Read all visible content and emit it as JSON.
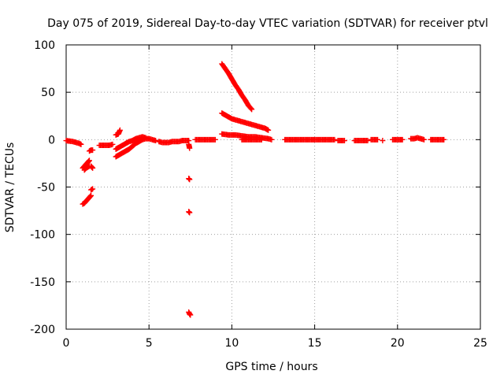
{
  "chart_data": {
    "type": "scatter",
    "title": "Day 075 of 2019, Sidereal Day-to-day VTEC variation (SDTVAR) for receiver ptvl",
    "xlabel": "GPS time / hours",
    "ylabel": "SDTVAR / TECUs",
    "xlim": [
      0,
      25
    ],
    "ylim": [
      -200,
      100
    ],
    "xticks": [
      0,
      5,
      10,
      15,
      20,
      25
    ],
    "yticks": [
      -200,
      -150,
      -100,
      -50,
      0,
      50,
      100
    ],
    "grid": true,
    "marker": "+",
    "series": [
      {
        "name": "SDTVAR",
        "color": "#ff0000",
        "segments": [
          [
            [
              0.0,
              -1
            ],
            [
              0.2,
              -1.5
            ],
            [
              0.4,
              -2
            ],
            [
              0.6,
              -3
            ],
            [
              0.8,
              -4
            ],
            [
              0.9,
              -5
            ]
          ],
          [
            [
              1.0,
              -30
            ],
            [
              1.1,
              -28
            ],
            [
              1.2,
              -26
            ],
            [
              1.3,
              -24
            ],
            [
              1.4,
              -22
            ]
          ],
          [
            [
              1.0,
              -68
            ],
            [
              1.1,
              -67
            ],
            [
              1.2,
              -65
            ],
            [
              1.3,
              -63
            ],
            [
              1.4,
              -61
            ],
            [
              1.5,
              -59
            ]
          ],
          [
            [
              1.1,
              -32
            ],
            [
              1.2,
              -30
            ],
            [
              1.3,
              -29
            ],
            [
              1.4,
              -28
            ]
          ],
          [
            [
              1.4,
              -12
            ],
            [
              1.5,
              -11
            ],
            [
              1.6,
              -11
            ]
          ],
          [
            [
              1.5,
              -28
            ],
            [
              1.6,
              -30
            ]
          ],
          [
            [
              1.5,
              -53
            ],
            [
              1.6,
              -52
            ]
          ],
          [
            [
              2.0,
              -6
            ],
            [
              2.2,
              -6
            ],
            [
              2.4,
              -6
            ],
            [
              2.6,
              -6
            ],
            [
              2.8,
              -5
            ]
          ],
          [
            [
              3.0,
              5
            ],
            [
              3.15,
              6
            ],
            [
              3.25,
              10
            ]
          ],
          [
            [
              3.0,
              -18
            ],
            [
              3.2,
              -16
            ],
            [
              3.4,
              -14
            ],
            [
              3.6,
              -12
            ],
            [
              3.8,
              -10
            ],
            [
              4.0,
              -7
            ],
            [
              4.2,
              -4
            ],
            [
              4.4,
              -2
            ],
            [
              4.6,
              0
            ],
            [
              4.8,
              1
            ],
            [
              5.0,
              1
            ],
            [
              5.2,
              0
            ],
            [
              5.4,
              -1
            ]
          ],
          [
            [
              3.0,
              -10
            ],
            [
              3.2,
              -8
            ],
            [
              3.4,
              -6
            ],
            [
              3.6,
              -4
            ],
            [
              3.8,
              -2
            ],
            [
              4.0,
              -1
            ],
            [
              4.2,
              1
            ],
            [
              4.4,
              2
            ],
            [
              4.6,
              3
            ],
            [
              4.8,
              2
            ]
          ],
          [
            [
              5.6,
              -2
            ],
            [
              5.8,
              -3
            ],
            [
              6.0,
              -3
            ],
            [
              6.2,
              -3
            ],
            [
              6.4,
              -2
            ],
            [
              6.6,
              -2
            ],
            [
              6.8,
              -2
            ],
            [
              7.0,
              -1
            ],
            [
              7.2,
              -1
            ],
            [
              7.4,
              -1
            ]
          ],
          [
            [
              7.4,
              -5
            ],
            [
              7.45,
              -9
            ]
          ],
          [
            [
              7.4,
              -41
            ],
            [
              7.45,
              -42
            ]
          ],
          [
            [
              7.4,
              -76
            ],
            [
              7.45,
              -77
            ]
          ],
          [
            [
              7.4,
              -182
            ],
            [
              7.45,
              -184
            ],
            [
              7.5,
              -185
            ]
          ],
          [
            [
              7.8,
              0
            ],
            [
              8.0,
              0
            ],
            [
              8.2,
              0
            ],
            [
              8.4,
              0
            ],
            [
              8.6,
              0
            ],
            [
              8.8,
              0
            ],
            [
              9.0,
              0
            ]
          ],
          [
            [
              9.4,
              80
            ],
            [
              9.6,
              75
            ],
            [
              9.8,
              70
            ],
            [
              10.0,
              64
            ],
            [
              10.2,
              58
            ],
            [
              10.4,
              53
            ],
            [
              10.6,
              47
            ],
            [
              10.8,
              42
            ],
            [
              11.0,
              36
            ],
            [
              11.2,
              32
            ]
          ],
          [
            [
              9.4,
              28
            ],
            [
              9.6,
              26
            ],
            [
              9.8,
              24
            ],
            [
              10.0,
              22
            ],
            [
              10.4,
              20
            ],
            [
              10.8,
              18
            ],
            [
              11.2,
              16
            ],
            [
              11.6,
              14
            ],
            [
              12.0,
              12
            ],
            [
              12.2,
              10
            ]
          ],
          [
            [
              9.4,
              6
            ],
            [
              9.8,
              5
            ],
            [
              10.2,
              5
            ],
            [
              10.6,
              4
            ],
            [
              11.0,
              3
            ],
            [
              11.4,
              3
            ],
            [
              11.8,
              2
            ],
            [
              12.2,
              1
            ],
            [
              12.4,
              0
            ]
          ],
          [
            [
              10.6,
              0
            ],
            [
              10.8,
              0
            ],
            [
              11.0,
              0
            ],
            [
              11.2,
              0
            ],
            [
              11.4,
              0
            ],
            [
              11.6,
              0
            ],
            [
              11.8,
              0
            ]
          ],
          [
            [
              13.2,
              0
            ],
            [
              13.4,
              0
            ],
            [
              13.6,
              0
            ],
            [
              13.8,
              0
            ],
            [
              14.0,
              0
            ],
            [
              14.2,
              0
            ],
            [
              14.4,
              0
            ],
            [
              14.6,
              0
            ],
            [
              14.8,
              0
            ],
            [
              15.0,
              0
            ],
            [
              15.2,
              0
            ],
            [
              15.4,
              0
            ],
            [
              15.6,
              0
            ],
            [
              15.8,
              0
            ],
            [
              16.0,
              0
            ],
            [
              16.2,
              0
            ]
          ],
          [
            [
              16.4,
              -1
            ],
            [
              16.6,
              -1
            ],
            [
              16.8,
              -1
            ]
          ],
          [
            [
              17.4,
              -1
            ],
            [
              17.6,
              -1
            ],
            [
              17.8,
              -1
            ],
            [
              18.0,
              -1
            ],
            [
              18.2,
              -1
            ]
          ],
          [
            [
              18.4,
              0
            ],
            [
              18.6,
              0
            ],
            [
              18.8,
              0
            ]
          ],
          [
            [
              19.1,
              -1
            ]
          ],
          [
            [
              19.7,
              0
            ],
            [
              19.9,
              0
            ],
            [
              20.1,
              0
            ],
            [
              20.3,
              0
            ]
          ],
          [
            [
              20.8,
              1
            ],
            [
              21.0,
              1
            ],
            [
              21.2,
              2
            ],
            [
              21.4,
              1
            ],
            [
              21.6,
              0
            ]
          ],
          [
            [
              22.0,
              0
            ],
            [
              22.2,
              0
            ],
            [
              22.4,
              0
            ],
            [
              22.6,
              0
            ],
            [
              22.8,
              0
            ]
          ]
        ]
      }
    ]
  }
}
